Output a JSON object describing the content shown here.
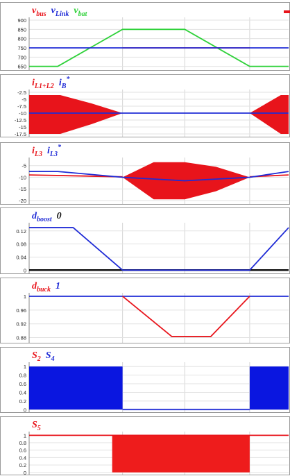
{
  "chart_data": [
    {
      "type": "line",
      "labels": [
        {
          "text": "v",
          "sub": "bus",
          "color": "#e8141b"
        },
        {
          "text": "v",
          "sub": "Link",
          "color": "#1f2bd6"
        },
        {
          "text": "v",
          "sub": "bat",
          "color": "#2fd13a"
        }
      ],
      "ylim": [
        630,
        915
      ],
      "yticks": [
        650,
        700,
        750,
        800,
        850,
        900
      ],
      "ytick_labels": [
        "650",
        "700",
        "750",
        "800",
        "850",
        "900"
      ],
      "series": [
        {
          "color": "#2fd13a",
          "x": [
            0,
            0.11,
            0.36,
            0.6,
            0.85,
            1.0
          ],
          "y": [
            650,
            650,
            850,
            850,
            650,
            650
          ]
        },
        {
          "color": "#e8141b",
          "x": [
            0.36,
            0.85
          ],
          "y": [
            750,
            750
          ]
        },
        {
          "color": "#1f2bd6",
          "x": [
            0,
            1.0
          ],
          "y": [
            750,
            750
          ]
        }
      ]
    },
    {
      "type": "area",
      "labels": [
        {
          "text": "i",
          "sub": "L1+L2",
          "color": "#e8141b"
        },
        {
          "text": "i",
          "sup": "*",
          "sub": "B",
          "color": "#1f2bd6"
        }
      ],
      "ylim": [
        -18.5,
        -1.5
      ],
      "yticks": [
        -2.5,
        -5,
        -7.5,
        -10,
        -12.5,
        -15,
        -17.5
      ],
      "ytick_labels": [
        "-2.5",
        "-5",
        "-7.5",
        "-10",
        "-12.5",
        "-15",
        "-17.5"
      ],
      "bands": [
        {
          "color": "#e8141b",
          "x": [
            0,
            0.12,
            0.24,
            0.36
          ],
          "upper": [
            -3.5,
            -3.5,
            -6.5,
            -10
          ],
          "lower": [
            -17.5,
            -17.5,
            -14,
            -10
          ]
        },
        {
          "color": "#e8141b",
          "x": [
            0.85,
            0.97,
            1.0
          ],
          "upper": [
            -10,
            -3.5,
            -3.5
          ],
          "lower": [
            -10,
            -17.5,
            -17.5
          ]
        }
      ],
      "series": [
        {
          "color": "#1f2bd6",
          "x": [
            0,
            1.0
          ],
          "y": [
            -10,
            -10
          ]
        }
      ]
    },
    {
      "type": "area",
      "labels": [
        {
          "text": "i",
          "sub": "L3",
          "color": "#e8141b"
        },
        {
          "text": "i",
          "sup": "*",
          "sub": "L3",
          "color": "#1f2bd6"
        }
      ],
      "ylim": [
        -21.5,
        -1.5
      ],
      "yticks": [
        -5,
        -10,
        -15,
        -20
      ],
      "ytick_labels": [
        "-5",
        "-10",
        "-15",
        "-20"
      ],
      "bands": [
        {
          "color": "#e8141b",
          "x": [
            0.36,
            0.48,
            0.6,
            0.72,
            0.85
          ],
          "upper": [
            -10,
            -3.5,
            -3.5,
            -5.5,
            -10
          ],
          "lower": [
            -10,
            -19.5,
            -19.5,
            -16,
            -10
          ]
        }
      ],
      "series": [
        {
          "color": "#e8141b",
          "x": [
            0,
            0.36
          ],
          "y": [
            -9,
            -9.8
          ]
        },
        {
          "color": "#e8141b",
          "x": [
            0.85,
            1.0
          ],
          "y": [
            -9.8,
            -9
          ]
        },
        {
          "color": "#1f2bd6",
          "x": [
            0,
            0.11,
            0.36,
            0.6,
            0.85,
            1.0
          ],
          "y": [
            -7.5,
            -7.5,
            -10,
            -11.5,
            -10,
            -7.5
          ]
        }
      ]
    },
    {
      "type": "line",
      "labels": [
        {
          "text": "d",
          "sub": "boost",
          "color": "#1f2bd6"
        },
        {
          "text": "0",
          "color": "#111111"
        }
      ],
      "ylim": [
        -0.01,
        0.145
      ],
      "yticks": [
        0,
        0.04,
        0.08,
        0.12
      ],
      "ytick_labels": [
        "0",
        "0.04",
        "0.08",
        "0.12"
      ],
      "series": [
        {
          "color": "#111111",
          "width": 2.5,
          "x": [
            0,
            1.0
          ],
          "y": [
            0,
            0
          ]
        },
        {
          "color": "#1f2bd6",
          "x": [
            0,
            0.17,
            0.36,
            0.85,
            1.0
          ],
          "y": [
            0.13,
            0.13,
            0,
            0,
            0.13
          ]
        }
      ]
    },
    {
      "type": "line",
      "labels": [
        {
          "text": "d",
          "sub": "buck",
          "color": "#e8141b"
        },
        {
          "text": "1",
          "color": "#1f2bd6"
        }
      ],
      "ylim": [
        0.865,
        1.01
      ],
      "yticks": [
        0.88,
        0.92,
        0.96,
        1
      ],
      "ytick_labels": [
        "0.88",
        "0.92",
        "0.96",
        "1"
      ],
      "series": [
        {
          "color": "#1f2bd6",
          "x": [
            0,
            1.0
          ],
          "y": [
            1,
            1
          ]
        },
        {
          "color": "#e8141b",
          "x": [
            0.36,
            0.55,
            0.7,
            0.85
          ],
          "y": [
            1,
            0.883,
            0.883,
            1
          ]
        }
      ]
    },
    {
      "type": "area",
      "labels": [
        {
          "text": "S",
          "sub": "2",
          "color": "#e8141b"
        },
        {
          "text": "S",
          "sub": "4",
          "color": "#1f2bd6"
        }
      ],
      "ylim": [
        -0.06,
        1.1
      ],
      "yticks": [
        0,
        0.2,
        0.4,
        0.6,
        0.8,
        1
      ],
      "ytick_labels": [
        "0",
        "0.2",
        "0.4",
        "0.6",
        "0.8",
        "1"
      ],
      "rects": [
        {
          "color": "#0a16e0",
          "x0": 0,
          "x1": 0.36,
          "y0": 0,
          "y1": 1
        },
        {
          "color": "#0a16e0",
          "x0": 0.85,
          "x1": 1.0,
          "y0": 0,
          "y1": 1
        }
      ],
      "series": [
        {
          "color": "#1f2bd6",
          "x": [
            0.36,
            0.85
          ],
          "y": [
            0,
            0
          ]
        }
      ]
    },
    {
      "type": "area",
      "labels": [
        {
          "text": "S",
          "sub": "5",
          "color": "#e8141b"
        }
      ],
      "ylim": [
        -0.06,
        1.1
      ],
      "yticks": [
        0,
        0.2,
        0.4,
        0.6,
        0.8,
        1
      ],
      "ytick_labels": [
        "0",
        "0.2",
        "0.4",
        "0.6",
        "0.8",
        "1"
      ],
      "rects": [
        {
          "color": "#ee1c1c",
          "x0": 0.32,
          "x1": 0.85,
          "y0": 0,
          "y1": 1
        }
      ],
      "series": [
        {
          "color": "#e8141b",
          "x": [
            0,
            1.0
          ],
          "y": [
            1,
            1
          ]
        }
      ]
    }
  ]
}
